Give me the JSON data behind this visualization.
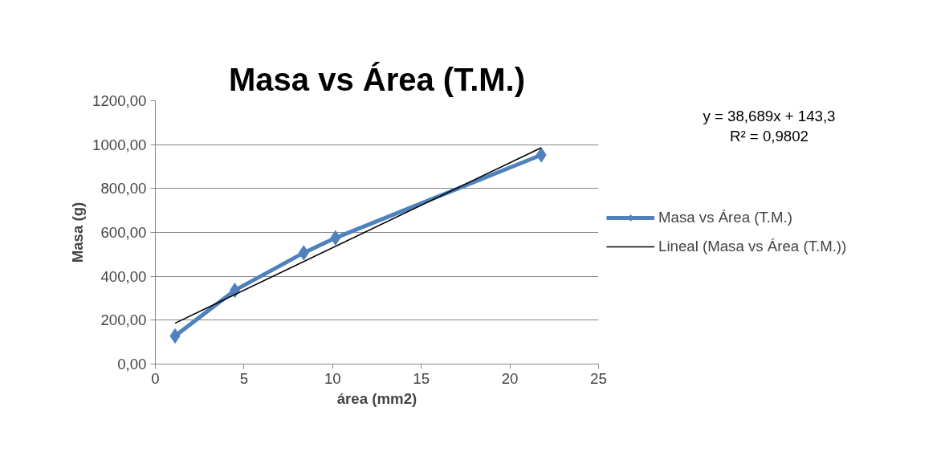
{
  "chart_data": {
    "type": "line",
    "title": "Masa vs Área (T.M.)",
    "xlabel": "área (mm2)",
    "ylabel": "Masa (g)",
    "x": [
      1.11,
      4.48,
      8.37,
      10.16,
      21.77
    ],
    "series": [
      {
        "name": "Masa vs Área (T.M.)",
        "color": "#4f81bd",
        "values": [
          128,
          336,
          507,
          575,
          953
        ],
        "marker": "diamond",
        "line_style": "solid"
      },
      {
        "name": "Lineal (Masa vs Área (T.M.))",
        "color": "#000000",
        "type": "line",
        "x": [
          1.11,
          21.77
        ],
        "values": [
          186,
          986
        ],
        "marker": "none",
        "line_style": "solid"
      }
    ],
    "xlim": [
      0,
      25
    ],
    "xticks": [
      0,
      5,
      10,
      15,
      20,
      25
    ],
    "ylim": [
      0,
      1200
    ],
    "yticks": [
      {
        "value": 0,
        "label": "0,00"
      },
      {
        "value": 200,
        "label": "200,00"
      },
      {
        "value": 400,
        "label": "400,00"
      },
      {
        "value": 600,
        "label": "600,00"
      },
      {
        "value": 800,
        "label": "800,00"
      },
      {
        "value": 1000,
        "label": "1000,00"
      },
      {
        "value": 1200,
        "label": "1200,00"
      }
    ],
    "grid": "y",
    "legend": "right",
    "annotations": [
      "y = 38,689x + 143,3",
      "R² = 0,9802"
    ]
  }
}
